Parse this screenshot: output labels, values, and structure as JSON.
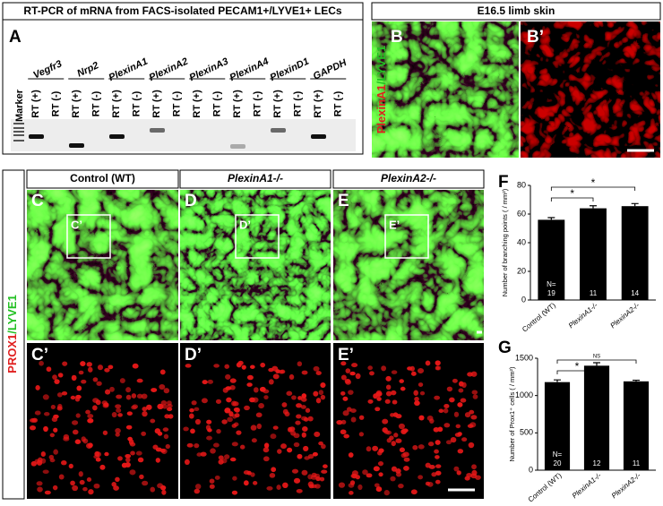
{
  "panel_a": {
    "title": "RT-PCR of mRNA from FACS-isolated PECAM1+/LYVE1+ LECs",
    "label": "A",
    "marker": "Marker",
    "genes": [
      "Vegfr3",
      "Nrp2",
      "PlexinA1",
      "PlexinA2",
      "PlexinA3",
      "PlexinA4",
      "PlexinD1",
      "GAPDH"
    ],
    "lanes": [
      "RT (+)",
      "RT (-)",
      "RT (+)",
      "RT (-)",
      "RT (+)",
      "RT (-)",
      "RT (+)",
      "RT (-)",
      "RT (+)",
      "RT (-)",
      "RT (+)",
      "RT (-)",
      "RT (+)",
      "RT (-)",
      "RT (+)",
      "RT (-)"
    ]
  },
  "panel_b": {
    "title": "E16.5 limb skin",
    "labels": [
      "B",
      "B’"
    ],
    "stain_parts": [
      "PlexinA1",
      "/LYVE1"
    ]
  },
  "panels_ce": {
    "columns": [
      "Control (WT)",
      "PlexinA1-/-",
      "PlexinA2-/-"
    ],
    "labels": [
      "C",
      "D",
      "E"
    ],
    "inset_labels": [
      "C’",
      "D’",
      "E’"
    ],
    "lower_labels": [
      "C’",
      "D’",
      "E’"
    ],
    "stain_parts": [
      "PROX1",
      "/LYVE1"
    ]
  },
  "chart_data": [
    {
      "type": "bar",
      "label": "F",
      "y_label": "Number of branching points ( / mm²)",
      "categories": [
        "Control (WT)",
        "PlexinA1-/-",
        "PlexinA2-/-"
      ],
      "values": [
        56,
        64,
        65.5
      ],
      "errors": [
        1.5,
        1.8,
        1.8
      ],
      "color": "#000000",
      "ylim": [
        0,
        80
      ],
      "yticks": [
        0,
        20,
        40,
        60,
        80
      ],
      "n_prefix": "N=",
      "n": [
        19,
        11,
        14
      ],
      "significance": [
        "*",
        "*"
      ]
    },
    {
      "type": "bar",
      "label": "G",
      "y_label": "Number of Prox1⁺ cells ( / mm²)",
      "categories": [
        "Control (WT)",
        "PlexinA1-/-",
        "PlexinA2-/-"
      ],
      "values": [
        1180,
        1400,
        1190
      ],
      "errors": [
        30,
        40,
        15
      ],
      "color": "#000000",
      "ylim": [
        0,
        1500
      ],
      "yticks": [
        0,
        500,
        1000,
        1500
      ],
      "n_prefix": "N=",
      "n": [
        20,
        12,
        11
      ],
      "significance": [
        "*",
        "NS"
      ]
    }
  ]
}
